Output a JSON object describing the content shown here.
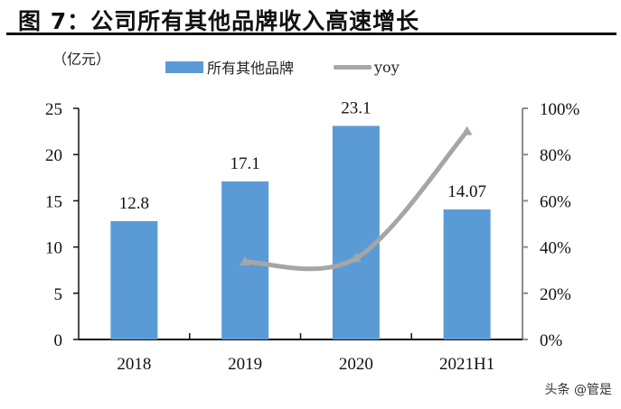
{
  "title": "图 7：公司所有其他品牌收入高速增长",
  "watermark": "头条 @管是",
  "chart_data": {
    "type": "bar+line",
    "title": "图 7：公司所有其他品牌收入高速增长",
    "ylabel": "（亿元）",
    "categories": [
      "2018",
      "2019",
      "2020",
      "2021H1"
    ],
    "series": [
      {
        "name": "所有其他品牌",
        "type": "bar",
        "axis": "left",
        "color": "#5b9bd5",
        "values": [
          12.8,
          17.1,
          23.1,
          14.07
        ],
        "labels": [
          "12.8",
          "17.1",
          "23.1",
          "14.07"
        ]
      },
      {
        "name": "yoy",
        "type": "line",
        "axis": "right",
        "color": "#a6a6a6",
        "values": [
          null,
          33.6,
          35.1,
          90
        ]
      }
    ],
    "ylim": [
      0,
      25
    ],
    "yticks": [
      0,
      5,
      10,
      15,
      20,
      25
    ],
    "y2lim": [
      0,
      100
    ],
    "y2ticks": [
      "0%",
      "20%",
      "40%",
      "60%",
      "80%",
      "100%"
    ],
    "grid": false,
    "legend": "top"
  }
}
